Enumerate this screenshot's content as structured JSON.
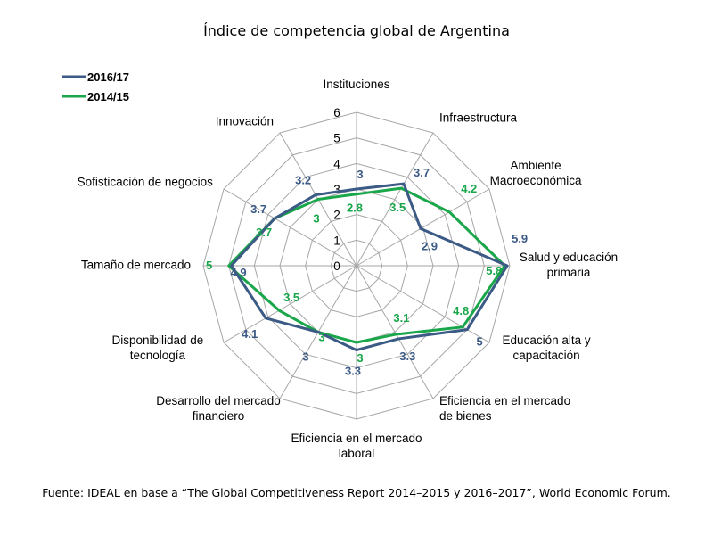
{
  "chart_data": {
    "type": "radar",
    "title": "Índice de competencia global de Argentina",
    "source": "Fuente: IDEAL en base a “The Global Competitiveness Report 2014–2015 y 2016–2017”, World Economic Forum.",
    "axis_range": [
      0,
      6
    ],
    "ticks": [
      "0",
      "1",
      "2",
      "3",
      "4",
      "5",
      "6"
    ],
    "categories": [
      [
        "Instituciones"
      ],
      [
        "Infraestructura"
      ],
      [
        "Ambiente",
        "Macroeconómica"
      ],
      [
        "Salud y educación",
        "primaria"
      ],
      [
        "Educación alta y",
        "capacitación"
      ],
      [
        "Eficiencia en el mercado",
        "de bienes"
      ],
      [
        "Eficiencia en el mercado",
        "laboral"
      ],
      [
        "Desarrollo del mercado",
        "financiero"
      ],
      [
        "Disponibilidad de",
        "tecnología"
      ],
      [
        "Tamaño de mercado"
      ],
      [
        "Sofisticación de negocios"
      ],
      [
        "Innovación"
      ]
    ],
    "series": [
      {
        "name": "2016/17",
        "color": "#3b5a85",
        "values": [
          3,
          3.7,
          2.9,
          5.9,
          5,
          3.3,
          3.3,
          3,
          4.1,
          4.9,
          3.7,
          3.2
        ],
        "labels": [
          "3",
          "3.7",
          "2.9",
          "5.9",
          "5",
          "3.3",
          "3.3",
          "3",
          "4.1",
          "4.9",
          "3.7",
          "3.2"
        ]
      },
      {
        "name": "2014/15",
        "color": "#1aa64a",
        "values": [
          2.8,
          3.5,
          4.2,
          5.8,
          4.8,
          3.1,
          3,
          3,
          3.5,
          5,
          3.7,
          3
        ],
        "labels": [
          "2.8",
          "3.5",
          "4.2",
          "5.8",
          "4.8",
          "3.1",
          "3",
          "3",
          "3.5",
          "5",
          "3.7",
          "3"
        ]
      }
    ],
    "grid": true,
    "legend_position": "top-left"
  }
}
